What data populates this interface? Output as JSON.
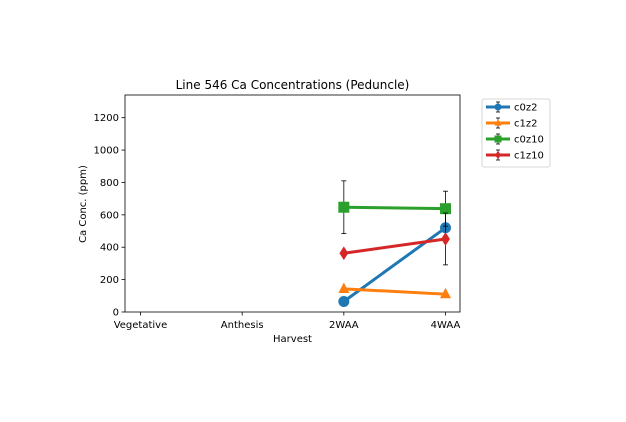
{
  "chart_data": {
    "type": "line",
    "title": "Line 546 Ca Concentrations (Peduncle)",
    "xlabel": "Harvest",
    "ylabel": "Ca Conc. (ppm)",
    "categories": [
      "Vegetative",
      "Anthesis",
      "2WAA",
      "4WAA"
    ],
    "ylim": [
      0,
      1340
    ],
    "yticks": [
      0,
      200,
      400,
      600,
      800,
      1000,
      1200
    ],
    "ytick_labels": [
      "0",
      "200",
      "400",
      "600",
      "800",
      "1000",
      "1200"
    ],
    "grid": false,
    "legend_position": "outside-right",
    "series": [
      {
        "name": "c0z2",
        "color": "#1f77b4",
        "marker": "circle",
        "values": [
          null,
          null,
          65,
          520
        ],
        "err": [
          null,
          null,
          null,
          null
        ]
      },
      {
        "name": "c1z2",
        "color": "#ff7f0e",
        "marker": "triangle",
        "values": [
          null,
          null,
          143,
          110
        ],
        "err": [
          null,
          null,
          null,
          null
        ]
      },
      {
        "name": "c0z10",
        "color": "#2ca02c",
        "marker": "square",
        "values": [
          null,
          null,
          647,
          638
        ],
        "err": [
          null,
          null,
          163,
          108
        ]
      },
      {
        "name": "c1z10",
        "color": "#d62728",
        "marker": "diamond",
        "values": [
          null,
          null,
          363,
          451
        ],
        "err": [
          null,
          null,
          null,
          160
        ]
      }
    ]
  }
}
